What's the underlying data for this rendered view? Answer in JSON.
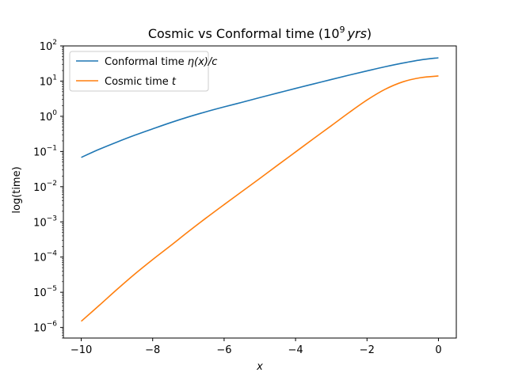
{
  "chart_data": {
    "type": "line",
    "title": "Cosmic vs Conformal time (10",
    "title_sup": "9",
    "title_unit": "yrs",
    "title_close": ")",
    "xlabel": "x",
    "ylabel": "log(time)",
    "xlim": [
      -10.5,
      0.5
    ],
    "ylim": [
      5e-07,
      100
    ],
    "y_scale": "log",
    "grid": false,
    "legend_position": "top-left",
    "x_ticks": [
      -10,
      -8,
      -6,
      -4,
      -2,
      0
    ],
    "x_tick_labels": [
      "−10",
      "−8",
      "−6",
      "−4",
      "−2",
      "0"
    ],
    "y_ticks": [
      1e-06,
      1e-05,
      0.0001,
      0.001,
      0.01,
      0.1,
      1,
      10,
      100
    ],
    "y_tick_exponents": [
      "−6",
      "−5",
      "−4",
      "−3",
      "−2",
      "−1",
      "0",
      "1",
      "2"
    ],
    "y_tick_base": "10",
    "series": [
      {
        "name": "Conformal time η(x)/c",
        "color": "#1f77b4",
        "x": [
          -10,
          -9.5,
          -9,
          -8.5,
          -8,
          -7.5,
          -7,
          -6.5,
          -6,
          -5.5,
          -5,
          -4.5,
          -4,
          -3.5,
          -3,
          -2.5,
          -2,
          -1.5,
          -1,
          -0.5,
          0
        ],
        "y": [
          0.068,
          0.115,
          0.185,
          0.29,
          0.44,
          0.66,
          0.96,
          1.35,
          1.85,
          2.5,
          3.4,
          4.6,
          6.2,
          8.3,
          11.1,
          14.8,
          19.5,
          25.5,
          32.5,
          40.0,
          46.0
        ]
      },
      {
        "name": "Cosmic time t",
        "color": "#ff7f0e",
        "x": [
          -10,
          -9.5,
          -9,
          -8.5,
          -8,
          -7.5,
          -7,
          -6.5,
          -6,
          -5.5,
          -5,
          -4.5,
          -4,
          -3.5,
          -3,
          -2.5,
          -2,
          -1.5,
          -1,
          -0.5,
          0
        ],
        "y": [
          1.5e-06,
          4.2e-06,
          1.2e-05,
          3.3e-05,
          8.5e-05,
          0.00021,
          0.00053,
          0.0013,
          0.0031,
          0.0073,
          0.0172,
          0.041,
          0.097,
          0.23,
          0.54,
          1.28,
          2.9,
          5.8,
          9.5,
          12.5,
          14.0
        ]
      }
    ],
    "legend": [
      {
        "text": "Conformal time ",
        "math": "η(x)/c"
      },
      {
        "text": "Cosmic time ",
        "math": "t"
      }
    ]
  }
}
